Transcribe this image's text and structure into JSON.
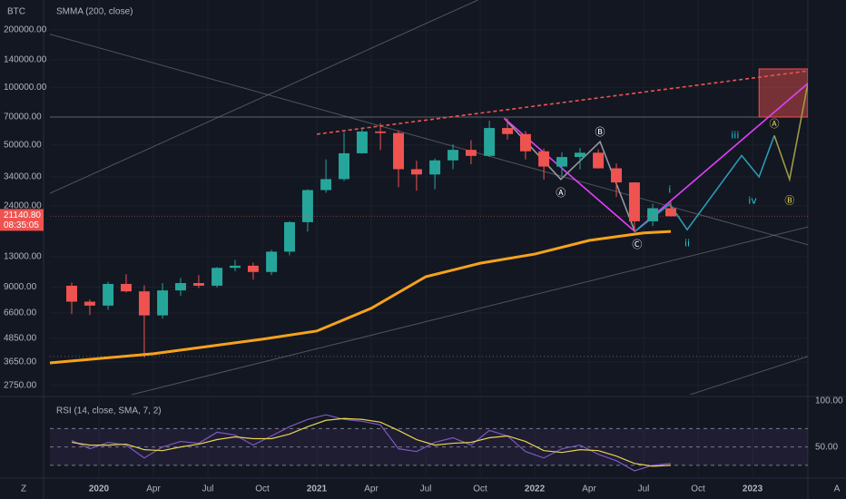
{
  "toolbar": {
    "left": "Z",
    "right": "A"
  },
  "chart_data": [
    {
      "type": "candlestick",
      "symbol": "BTC",
      "log": true,
      "grid": true,
      "up_color": "#26a69a",
      "down_color": "#ef5350",
      "x": [
        2019.875,
        2019.958,
        2020.042,
        2020.125,
        2020.208,
        2020.292,
        2020.375,
        2020.458,
        2020.542,
        2020.625,
        2020.708,
        2020.792,
        2020.875,
        2020.958,
        2021.042,
        2021.125,
        2021.208,
        2021.292,
        2021.375,
        2021.458,
        2021.542,
        2021.625,
        2021.708,
        2021.792,
        2021.875,
        2021.958,
        2022.042,
        2022.125,
        2022.208,
        2022.292,
        2022.375,
        2022.458,
        2022.542,
        2022.625
      ],
      "open": [
        9150,
        7550,
        7200,
        9350,
        8550,
        6400,
        8650,
        9450,
        9150,
        11350,
        11650,
        10800,
        13800,
        19700,
        29000,
        33100,
        45200,
        58800,
        57700,
        37300,
        35000,
        41500,
        47100,
        43800,
        61300,
        57000,
        46300,
        38500,
        43200,
        45500,
        37700,
        31800,
        19900,
        23300
      ],
      "high": [
        9500,
        7750,
        9600,
        10500,
        9200,
        9450,
        10050,
        10400,
        11450,
        12500,
        12100,
        14100,
        19900,
        29300,
        42000,
        58300,
        61800,
        64900,
        59600,
        41300,
        42400,
        50500,
        52900,
        67000,
        69000,
        59100,
        47900,
        45800,
        48200,
        47400,
        40000,
        31900,
        24600,
        25200
      ],
      "low": [
        6500,
        6430,
        6850,
        8450,
        3850,
        6150,
        8100,
        8900,
        8950,
        10900,
        9850,
        10400,
        13200,
        17600,
        28100,
        32300,
        45000,
        47000,
        30000,
        28800,
        29300,
        37300,
        39600,
        43300,
        53300,
        42000,
        32900,
        34300,
        37200,
        37600,
        26700,
        17600,
        18800,
        21100
      ],
      "close": [
        7550,
        7200,
        9350,
        8550,
        6400,
        8650,
        9450,
        9150,
        11350,
        11650,
        10800,
        13800,
        19700,
        29000,
        33100,
        45200,
        58800,
        57700,
        37300,
        35000,
        41500,
        47100,
        43800,
        61300,
        57000,
        46300,
        38500,
        43200,
        45500,
        37700,
        31800,
        19900,
        23300,
        21140.8
      ],
      "series": [
        {
          "name": "SMMA (200, close)",
          "color": "#f7a21b",
          "x": [
            2019.775,
            2020.25,
            2020.5,
            2020.75,
            2021.0,
            2021.25,
            2021.5,
            2021.75,
            2022.0,
            2022.25,
            2022.5,
            2022.625
          ],
          "values": [
            3610,
            4030,
            4400,
            4800,
            5300,
            6970,
            10200,
            12000,
            13400,
            15800,
            17300,
            17600
          ]
        }
      ],
      "xlim": [
        2019.775,
        2023.254
      ],
      "xticks": [
        {
          "value": 2020,
          "label": "2020"
        },
        {
          "value": 2020.25,
          "label": "Apr"
        },
        {
          "value": 2020.5,
          "label": "Jul"
        },
        {
          "value": 2020.75,
          "label": "Oct"
        },
        {
          "value": 2021,
          "label": "2021"
        },
        {
          "value": 2021.25,
          "label": "Apr"
        },
        {
          "value": 2021.5,
          "label": "Jul"
        },
        {
          "value": 2021.75,
          "label": "Oct"
        },
        {
          "value": 2022,
          "label": "2022"
        },
        {
          "value": 2022.25,
          "label": "Apr"
        },
        {
          "value": 2022.5,
          "label": "Jul"
        },
        {
          "value": 2022.75,
          "label": "Oct"
        },
        {
          "value": 2023,
          "label": "2023"
        }
      ],
      "ylim": [
        2460,
        287000
      ],
      "yticks": [
        {
          "value": 200000,
          "label": "200000.00"
        },
        {
          "value": 140000,
          "label": "140000.00"
        },
        {
          "value": 100000,
          "label": "100000.00"
        },
        {
          "value": 70000,
          "label": "70000.00"
        },
        {
          "value": 50000,
          "label": "50000.00"
        },
        {
          "value": 34000,
          "label": "34000.00"
        },
        {
          "value": 24000,
          "label": "24000.00"
        },
        {
          "value": 13000,
          "label": "13000.00"
        },
        {
          "value": 9000,
          "label": "9000.00"
        },
        {
          "value": 6600,
          "label": "6600.00"
        },
        {
          "value": 4850,
          "label": "4850.00"
        },
        {
          "value": 3650,
          "label": "3650.00"
        },
        {
          "value": 2750,
          "label": "2750.00"
        }
      ],
      "last_price": {
        "value": 21140.8,
        "label": "21140.80"
      },
      "countdown": "08:35:05",
      "last_color": "#ef5350",
      "levels": [
        70000,
        3900
      ],
      "zone": {
        "x": [
          2023.03,
          2023.254
        ],
        "y": [
          70000,
          125000
        ],
        "color": "#ef5350"
      },
      "drawings": [
        {
          "color": "#787b86",
          "dash": false,
          "x": [
            2019.775,
            2023.254
          ],
          "y": [
            190000,
            15000
          ]
        },
        {
          "color": "#787b86",
          "dash": false,
          "x": [
            2019.775,
            2021.74
          ],
          "y": [
            27900,
            287000
          ]
        },
        {
          "color": "#787b86",
          "dash": false,
          "x": [
            2020.15,
            2023.254
          ],
          "y": [
            2460,
            18600
          ]
        },
        {
          "color": "#787b86",
          "dash": false,
          "x": [
            2022.713,
            2023.254
          ],
          "y": [
            2460,
            3900
          ]
        },
        {
          "color": "#ef5350",
          "dash": true,
          "x": [
            2021.0,
            2023.254
          ],
          "y": [
            56900,
            122000
          ]
        },
        {
          "color": "#9598a1",
          "dash": false,
          "x": [
            2021.86,
            2022.12,
            2022.3,
            2022.46
          ],
          "y": [
            69000,
            33000,
            52000,
            17600
          ]
        },
        {
          "color": "#e040fb",
          "dash": false,
          "x": [
            2021.86,
            2022.46,
            2023.254
          ],
          "y": [
            69000,
            17600,
            105000
          ]
        },
        {
          "color": "#2a9db5",
          "dash": false,
          "x": [
            2022.46,
            2022.62,
            2022.7,
            2022.95,
            2023.03,
            2023.1
          ],
          "y": [
            17600,
            24500,
            18000,
            44000,
            34000,
            56000
          ]
        },
        {
          "color": "#9c9a45",
          "dash": false,
          "x": [
            2023.1,
            2023.17,
            2023.254
          ],
          "y": [
            56000,
            33000,
            105000
          ]
        }
      ],
      "wave_labels": [
        {
          "text": "Ⓐ",
          "color": "#ffffff",
          "x": 2022.12,
          "y": 27900
        },
        {
          "text": "Ⓑ",
          "color": "#ffffff",
          "x": 2022.3,
          "y": 58000
        },
        {
          "text": "Ⓒ",
          "color": "#ffffff",
          "x": 2022.47,
          "y": 15000
        },
        {
          "text": "i",
          "color": "#26c6da",
          "x": 2022.62,
          "y": 29000
        },
        {
          "text": "ii",
          "color": "#26c6da",
          "x": 2022.7,
          "y": 15200
        },
        {
          "text": "iii",
          "color": "#26c6da",
          "x": 2022.92,
          "y": 56000
        },
        {
          "text": "iv",
          "color": "#26c6da",
          "x": 2023.0,
          "y": 25500
        },
        {
          "text": "Ⓐ",
          "color": "#e8d44d",
          "x": 2023.1,
          "y": 64000
        },
        {
          "text": "Ⓑ",
          "color": "#e8d44d",
          "x": 2023.17,
          "y": 25500
        }
      ]
    },
    {
      "type": "line",
      "title": "RSI (14, close, SMA, 7, 2)",
      "x": [
        2019.875,
        2019.958,
        2020.042,
        2020.125,
        2020.208,
        2020.292,
        2020.375,
        2020.458,
        2020.542,
        2020.625,
        2020.708,
        2020.792,
        2020.875,
        2020.958,
        2021.042,
        2021.125,
        2021.208,
        2021.292,
        2021.375,
        2021.458,
        2021.542,
        2021.625,
        2021.708,
        2021.792,
        2021.875,
        2021.958,
        2022.042,
        2022.125,
        2022.208,
        2022.292,
        2022.375,
        2022.458,
        2022.542,
        2022.625
      ],
      "series": [
        {
          "name": "RSI",
          "color": "#7e57c2",
          "values": [
            57,
            48,
            55,
            52,
            38,
            50,
            56,
            54,
            66,
            63,
            52,
            62,
            72,
            80,
            85,
            80,
            78,
            74,
            48,
            45,
            55,
            60,
            52,
            68,
            62,
            45,
            38,
            48,
            52,
            42,
            35,
            24,
            30,
            32
          ]
        },
        {
          "name": "SMA",
          "color": "#e8d44d",
          "values": [
            55,
            52,
            52,
            53,
            47,
            46,
            50,
            53,
            58,
            61,
            59,
            59,
            64,
            72,
            79,
            81,
            80,
            77,
            68,
            58,
            52,
            54,
            55,
            60,
            62,
            56,
            46,
            44,
            47,
            46,
            40,
            32,
            29,
            30
          ]
        }
      ],
      "ylim": [
        18,
        102
      ],
      "yticks": [
        {
          "value": 50,
          "label": "50.00"
        },
        {
          "value": 100,
          "label": "100.00"
        }
      ],
      "levels": [
        30,
        50,
        70
      ],
      "band_color": "#7e57c2"
    }
  ]
}
